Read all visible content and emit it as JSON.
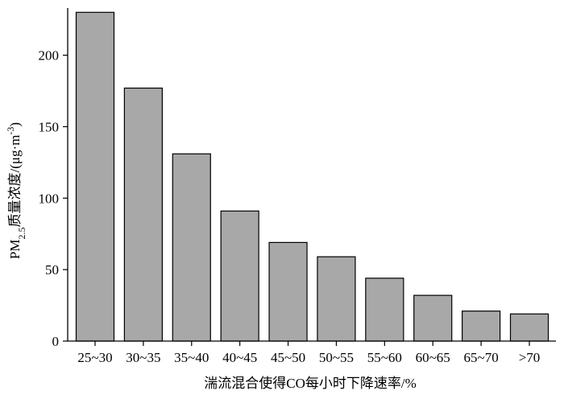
{
  "chart_data": {
    "type": "bar",
    "categories": [
      "25~30",
      "30~35",
      "35~40",
      "40~45",
      "45~50",
      "50~55",
      "55~60",
      "60~65",
      "65~70",
      ">70"
    ],
    "values": [
      230,
      177,
      131,
      91,
      69,
      59,
      44,
      32,
      21,
      19
    ],
    "xlabel": "湍流混合使得CO每小时下降速率/%",
    "ylabel": {
      "pre": "PM",
      "sub": "2.5",
      "mid": "质量浓度/(μg·m",
      "sup": "-3",
      "post": ")"
    },
    "ylim": [
      0,
      233
    ],
    "yticks": [
      0,
      50,
      100,
      150,
      200
    ],
    "grid": false,
    "legend": "none",
    "colors": {
      "bar": "#a8a8a8",
      "edge": "#000000"
    }
  }
}
